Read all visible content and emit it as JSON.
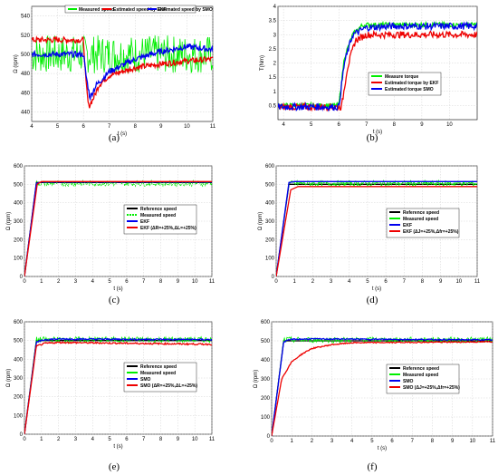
{
  "colors": {
    "reference": "#000000",
    "measured": "#00ee00",
    "ekf": "#ee0000",
    "smo": "#0000ee",
    "smo_blue": "#0000ee"
  },
  "chart_data": [
    {
      "caption": "(a)",
      "type": "line",
      "xlabel": "t (s)",
      "ylabel": "Ω (rpm)",
      "xlim": [
        4,
        11
      ],
      "ylim": [
        430,
        550
      ],
      "xticks": [
        4,
        5,
        6,
        7,
        8,
        9,
        10,
        11
      ],
      "yticks": [
        440,
        460,
        480,
        500,
        520,
        540
      ],
      "grid": true,
      "legend": "top",
      "series": [
        {
          "name": "Measured speed",
          "color": "#00ee00",
          "noise": 20,
          "x": [
            4,
            6.05,
            6.1,
            6.2,
            6.5,
            7,
            8,
            9,
            10,
            11
          ],
          "y": [
            500,
            500,
            500,
            500,
            500,
            500,
            500,
            500,
            500,
            500
          ]
        },
        {
          "name": "Estimated speed by EKF",
          "color": "#ee0000",
          "noise": 3,
          "x": [
            4,
            6.0,
            6.1,
            6.2,
            6.4,
            6.6,
            7,
            8,
            9,
            10,
            11
          ],
          "y": [
            515,
            515,
            470,
            445,
            455,
            468,
            478,
            486,
            490,
            493,
            495
          ]
        },
        {
          "name": "Estimated speed by SMO",
          "color": "#0000ee",
          "noise": 3,
          "x": [
            4,
            6.0,
            6.1,
            6.25,
            6.5,
            7,
            8,
            9,
            10,
            11
          ],
          "y": [
            500,
            500,
            478,
            455,
            468,
            482,
            495,
            503,
            508,
            505
          ]
        }
      ]
    },
    {
      "caption": "(b)",
      "type": "line",
      "xlabel": "t (s)",
      "ylabel": "T(Nm)",
      "xlim": [
        3.8,
        11
      ],
      "ylim": [
        0,
        4
      ],
      "xticks": [
        4,
        5,
        6,
        7,
        8,
        9,
        10
      ],
      "yticks": [
        0.5,
        1,
        1.5,
        2,
        2.5,
        3,
        3.5,
        4
      ],
      "grid": true,
      "legend": "bottom-center",
      "series": [
        {
          "name": "Measure torque",
          "color": "#00ee00",
          "noise": 0.08,
          "x": [
            3.8,
            6.0,
            6.2,
            6.5,
            6.8,
            7,
            8,
            9,
            10,
            11
          ],
          "y": [
            0.5,
            0.5,
            2.2,
            3.0,
            3.3,
            3.35,
            3.35,
            3.35,
            3.35,
            3.35
          ]
        },
        {
          "name": "Estimated torque by EKF",
          "color": "#ee0000",
          "noise": 0.12,
          "x": [
            3.8,
            6.1,
            6.3,
            6.6,
            7,
            8,
            9,
            10,
            11
          ],
          "y": [
            0.45,
            0.45,
            1.8,
            2.8,
            3.0,
            3.0,
            3.0,
            3.0,
            3.0
          ]
        },
        {
          "name": "Estimated torque SMO",
          "color": "#0000ee",
          "noise": 0.12,
          "x": [
            3.8,
            6.0,
            6.2,
            6.5,
            7,
            8,
            9,
            10,
            11
          ],
          "y": [
            0.45,
            0.45,
            2.0,
            3.0,
            3.25,
            3.3,
            3.3,
            3.3,
            3.3
          ]
        }
      ]
    },
    {
      "caption": "(c)",
      "type": "line",
      "xlabel": "t (s)",
      "ylabel": "Ω (rpm)",
      "xlim": [
        0,
        11
      ],
      "ylim": [
        0,
        600
      ],
      "xticks": [
        0,
        1,
        2,
        3,
        4,
        5,
        6,
        7,
        8,
        9,
        10,
        11
      ],
      "yticks": [
        0,
        100,
        200,
        300,
        400,
        500,
        600
      ],
      "grid": true,
      "legend": "center-right",
      "series": [
        {
          "name": "Reference speed",
          "color": "#000000",
          "noise": 0,
          "x": [
            0,
            0.7,
            11
          ],
          "y": [
            0,
            510,
            510
          ]
        },
        {
          "name": "Measured speed",
          "color": "#00ee00",
          "noise": 15,
          "dashed": true,
          "x": [
            0,
            0.7,
            11
          ],
          "y": [
            0,
            505,
            505
          ]
        },
        {
          "name": "EKF",
          "color": "#0000ee",
          "noise": 0,
          "x": [
            0,
            0.7,
            1,
            11
          ],
          "y": [
            0,
            505,
            512,
            512
          ]
        },
        {
          "name": "EKF (ΔR=+25%,ΔL=+25%)",
          "color": "#ee0000",
          "noise": 0,
          "x": [
            0,
            0.75,
            1,
            11
          ],
          "y": [
            0,
            500,
            515,
            515
          ]
        }
      ]
    },
    {
      "caption": "(d)",
      "type": "line",
      "xlabel": "t (s)",
      "ylabel": "Ω (rpm)",
      "xlim": [
        0,
        11
      ],
      "ylim": [
        0,
        600
      ],
      "xticks": [
        0,
        1,
        2,
        3,
        4,
        5,
        6,
        7,
        8,
        9,
        10,
        11
      ],
      "yticks": [
        0,
        100,
        200,
        300,
        400,
        500,
        600
      ],
      "grid": true,
      "legend": "center-right",
      "series": [
        {
          "name": "Reference speed",
          "color": "#000000",
          "noise": 0,
          "x": [
            0,
            0.7,
            11
          ],
          "y": [
            0,
            500,
            500
          ]
        },
        {
          "name": "Measured speed",
          "color": "#00ee00",
          "noise": 15,
          "x": [
            0,
            0.7,
            11
          ],
          "y": [
            0,
            505,
            505
          ]
        },
        {
          "name": "EKF",
          "color": "#0000ee",
          "noise": 0,
          "x": [
            0,
            0.7,
            1,
            11
          ],
          "y": [
            0,
            510,
            515,
            515
          ]
        },
        {
          "name": "EKF (ΔJ=+25%,Δfr=+25%)",
          "color": "#ee0000",
          "noise": 0,
          "x": [
            0,
            0.8,
            1.2,
            11
          ],
          "y": [
            0,
            470,
            488,
            488
          ]
        }
      ]
    },
    {
      "caption": "(e)",
      "type": "line",
      "xlabel": "t (s)",
      "ylabel": "Ω (rpm)",
      "xlim": [
        0,
        11
      ],
      "ylim": [
        0,
        600
      ],
      "xticks": [
        0,
        1,
        2,
        3,
        4,
        5,
        6,
        7,
        8,
        9,
        10,
        11
      ],
      "yticks": [
        0,
        100,
        200,
        300,
        400,
        500,
        600
      ],
      "grid": true,
      "legend": "center-right",
      "series": [
        {
          "name": "Reference speed",
          "color": "#000000",
          "noise": 0,
          "x": [
            0,
            0.7,
            11
          ],
          "y": [
            0,
            500,
            500
          ]
        },
        {
          "name": "Measured speed",
          "color": "#00ee00",
          "noise": 15,
          "x": [
            0,
            0.7,
            11
          ],
          "y": [
            0,
            505,
            505
          ]
        },
        {
          "name": "SMO",
          "color": "#0000ee",
          "noise": 4,
          "x": [
            0,
            0.7,
            1.2,
            2,
            11
          ],
          "y": [
            0,
            490,
            505,
            508,
            505
          ]
        },
        {
          "name": "SMO (ΔR=+25%,ΔL=+25%)",
          "color": "#ee0000",
          "noise": 4,
          "x": [
            0,
            0.7,
            1.2,
            2,
            11
          ],
          "y": [
            0,
            470,
            485,
            490,
            480
          ]
        }
      ]
    },
    {
      "caption": "(f)",
      "type": "line",
      "xlabel": "t (s)",
      "ylabel": "Ω (rpm)",
      "xlim": [
        0,
        11
      ],
      "ylim": [
        0,
        600
      ],
      "xticks": [
        0,
        1,
        2,
        3,
        4,
        5,
        6,
        7,
        8,
        9,
        10,
        11
      ],
      "yticks": [
        0,
        100,
        200,
        300,
        400,
        500,
        600
      ],
      "grid": true,
      "legend": "center-right",
      "series": [
        {
          "name": "Reference speed",
          "color": "#000000",
          "noise": 0,
          "x": [
            0,
            0.6,
            11
          ],
          "y": [
            0,
            500,
            500
          ]
        },
        {
          "name": "Measured speed",
          "color": "#00ee00",
          "noise": 15,
          "x": [
            0,
            0.6,
            11
          ],
          "y": [
            0,
            505,
            505
          ]
        },
        {
          "name": "SMO",
          "color": "#0000ee",
          "noise": 3,
          "x": [
            0,
            0.6,
            1,
            2,
            11
          ],
          "y": [
            0,
            495,
            508,
            510,
            505
          ]
        },
        {
          "name": "SMO (ΔJ=+25%,Δfr=+25%)",
          "color": "#ee0000",
          "noise": 3,
          "x": [
            0,
            0.5,
            1,
            1.5,
            2,
            3,
            4,
            11
          ],
          "y": [
            0,
            300,
            390,
            430,
            460,
            480,
            490,
            495
          ]
        }
      ]
    }
  ]
}
